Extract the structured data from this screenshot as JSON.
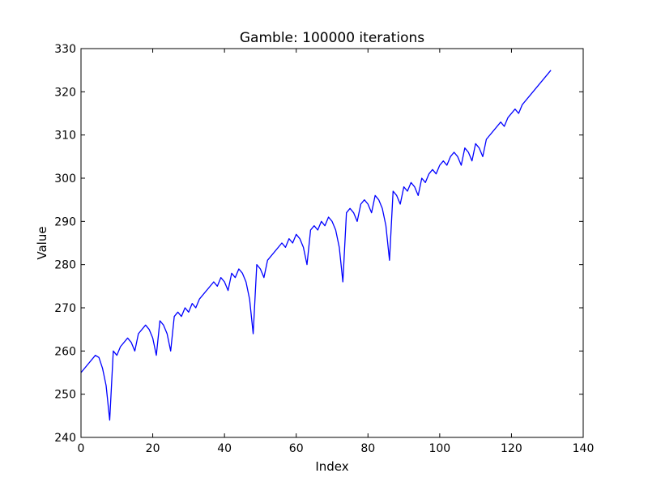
{
  "chart_data": {
    "type": "line",
    "title": "Gamble: 100000 iterations",
    "xlabel": "Index",
    "ylabel": "Value",
    "xlim": [
      0,
      140
    ],
    "ylim": [
      240,
      330
    ],
    "xticks": [
      0,
      20,
      40,
      60,
      80,
      100,
      120,
      140
    ],
    "yticks": [
      240,
      250,
      260,
      270,
      280,
      290,
      300,
      310,
      320,
      330
    ],
    "grid": false,
    "legend": "none",
    "series": [
      {
        "color": "#0000ff",
        "points": [
          [
            0,
            255
          ],
          [
            4,
            259
          ],
          [
            5,
            258.5
          ],
          [
            6,
            256
          ],
          [
            7,
            252
          ],
          [
            8,
            244
          ],
          [
            9,
            260
          ],
          [
            10,
            259
          ],
          [
            11,
            261
          ],
          [
            13,
            263
          ],
          [
            14,
            262
          ],
          [
            15,
            260
          ],
          [
            16,
            264
          ],
          [
            18,
            266
          ],
          [
            19,
            265
          ],
          [
            20,
            263
          ],
          [
            21,
            259
          ],
          [
            22,
            267
          ],
          [
            23,
            266
          ],
          [
            24,
            264
          ],
          [
            25,
            260
          ],
          [
            26,
            268
          ],
          [
            27,
            269
          ],
          [
            28,
            268
          ],
          [
            29,
            270
          ],
          [
            30,
            269
          ],
          [
            31,
            271
          ],
          [
            32,
            270
          ],
          [
            33,
            272
          ],
          [
            37,
            276
          ],
          [
            38,
            275
          ],
          [
            39,
            277
          ],
          [
            40,
            276
          ],
          [
            41,
            274
          ],
          [
            42,
            278
          ],
          [
            43,
            277
          ],
          [
            44,
            279
          ],
          [
            45,
            278
          ],
          [
            46,
            276
          ],
          [
            47,
            272
          ],
          [
            48,
            264
          ],
          [
            49,
            280
          ],
          [
            50,
            279
          ],
          [
            51,
            277
          ],
          [
            52,
            281
          ],
          [
            56,
            285
          ],
          [
            57,
            284
          ],
          [
            58,
            286
          ],
          [
            59,
            285
          ],
          [
            60,
            287
          ],
          [
            61,
            286
          ],
          [
            62,
            284
          ],
          [
            63,
            280
          ],
          [
            64,
            288
          ],
          [
            65,
            289
          ],
          [
            66,
            288
          ],
          [
            67,
            290
          ],
          [
            68,
            289
          ],
          [
            69,
            291
          ],
          [
            70,
            290
          ],
          [
            71,
            288
          ],
          [
            72,
            284
          ],
          [
            73,
            276
          ],
          [
            74,
            292
          ],
          [
            75,
            293
          ],
          [
            76,
            292
          ],
          [
            77,
            290
          ],
          [
            78,
            294
          ],
          [
            79,
            295
          ],
          [
            80,
            294
          ],
          [
            81,
            292
          ],
          [
            82,
            296
          ],
          [
            83,
            295
          ],
          [
            84,
            293
          ],
          [
            85,
            289
          ],
          [
            86,
            281
          ],
          [
            87,
            297
          ],
          [
            88,
            296
          ],
          [
            89,
            294
          ],
          [
            90,
            298
          ],
          [
            91,
            297
          ],
          [
            92,
            299
          ],
          [
            93,
            298
          ],
          [
            94,
            296
          ],
          [
            95,
            300
          ],
          [
            96,
            299
          ],
          [
            97,
            301
          ],
          [
            98,
            302
          ],
          [
            99,
            301
          ],
          [
            100,
            303
          ],
          [
            101,
            304
          ],
          [
            102,
            303
          ],
          [
            103,
            305
          ],
          [
            104,
            306
          ],
          [
            105,
            305
          ],
          [
            106,
            303
          ],
          [
            107,
            307
          ],
          [
            108,
            306
          ],
          [
            109,
            304
          ],
          [
            110,
            308
          ],
          [
            111,
            307
          ],
          [
            112,
            305
          ],
          [
            113,
            309
          ],
          [
            117,
            313
          ],
          [
            118,
            312
          ],
          [
            119,
            314
          ],
          [
            121,
            316
          ],
          [
            122,
            315
          ],
          [
            123,
            317
          ],
          [
            131,
            325
          ]
        ]
      }
    ]
  }
}
